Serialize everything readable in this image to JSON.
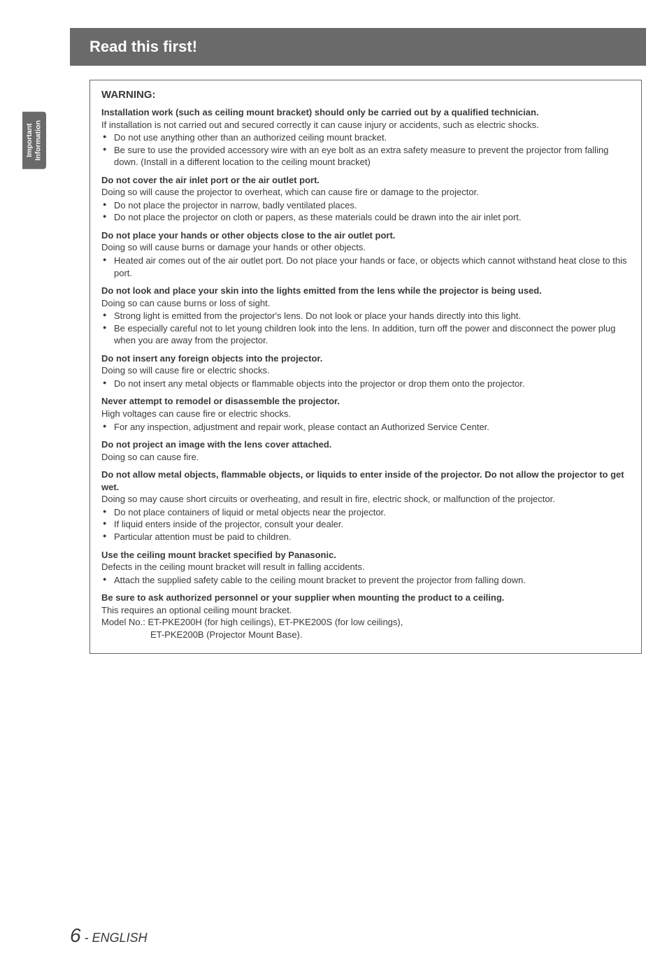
{
  "header": {
    "title": "Read this first!"
  },
  "sideTab": {
    "line1": "Important",
    "line2": "Information"
  },
  "warning": {
    "title": "WARNING:"
  },
  "sections": [
    {
      "head": "Installation work (such as ceiling mount bracket) should only be carried out by a qualified technician.",
      "body": "If installation is not carried out and secured correctly it can cause injury or accidents, such as electric shocks.",
      "bullets": [
        "Do not use anything other than an authorized ceiling mount bracket.",
        "Be sure to use the provided accessory wire with an eye bolt as an extra safety measure to prevent the projector from falling down. (Install in a different location to the ceiling mount bracket)"
      ]
    },
    {
      "head": "Do not cover the air inlet port or the air outlet port.",
      "body": "Doing so will cause the projector to overheat, which can cause fire or damage to the projector.",
      "bullets": [
        "Do not place the projector in narrow, badly ventilated places.",
        "Do not place the projector on cloth or papers, as these materials could be drawn into the air inlet port."
      ]
    },
    {
      "head": "Do not place your hands or other objects close to the air outlet port.",
      "body": "Doing so will cause burns or damage your hands or other objects.",
      "bullets": [
        "Heated air comes out of the air outlet port. Do not place your hands or face, or objects which cannot withstand heat close to this port."
      ]
    },
    {
      "head": "Do not look and place your skin into the lights emitted from the lens while the projector is being used.",
      "body": "Doing so can cause burns or loss of sight.",
      "bullets": [
        "Strong light is emitted from the projector's lens. Do not look or place your hands directly into this light.",
        "Be especially careful not to let young children look into the lens. In addition, turn off the power and disconnect the power plug when you are away from the projector."
      ]
    },
    {
      "head": "Do not insert any foreign objects into the projector.",
      "body": "Doing so will cause fire or electric shocks.",
      "bullets": [
        "Do not insert any metal objects or flammable objects into the projector or drop them onto the projector."
      ]
    },
    {
      "head": "Never attempt to remodel or disassemble the projector.",
      "body": "High voltages can cause fire or electric shocks.",
      "bullets": [
        "For any inspection, adjustment and repair work, please contact an Authorized Service Center."
      ]
    },
    {
      "head": "Do not project an image with the lens cover attached.",
      "body": "Doing so can cause fire.",
      "bullets": []
    },
    {
      "head": "Do not allow metal objects, flammable objects, or liquids to enter inside of the projector. Do not allow the projector to get wet.",
      "body": "Doing so may cause short circuits or overheating, and result in fire, electric shock, or malfunction of the projector.",
      "bullets": [
        "Do not place containers of liquid or metal objects near the projector.",
        "If liquid enters inside of the projector, consult your dealer.",
        "Particular attention must be paid to children."
      ]
    },
    {
      "head": "Use the ceiling mount bracket specified by Panasonic.",
      "body": "Defects in the ceiling mount bracket will result in falling accidents.",
      "bullets": [
        "Attach the supplied safety cable to the ceiling mount bracket to prevent the projector from falling down."
      ]
    },
    {
      "head": "Be sure to ask authorized personnel or your supplier when mounting the product to a ceiling.",
      "body": "This requires an optional ceiling mount bracket.",
      "bullets": [],
      "modelLine1": "Model No.: ET-PKE200H (for high ceilings), ET-PKE200S (for low ceilings),",
      "modelLine2": "ET-PKE200B (Projector Mount Base)."
    }
  ],
  "footer": {
    "pageNum": "6",
    "lang": " - ENGLISH"
  }
}
